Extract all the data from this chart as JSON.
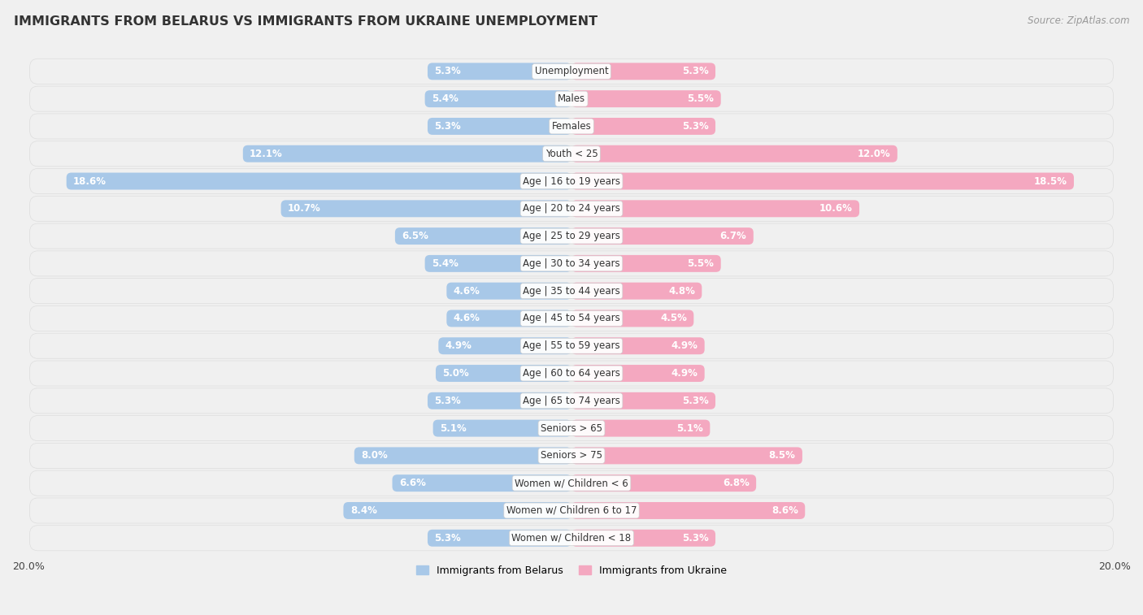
{
  "title": "IMMIGRANTS FROM BELARUS VS IMMIGRANTS FROM UKRAINE UNEMPLOYMENT",
  "source": "Source: ZipAtlas.com",
  "categories": [
    "Unemployment",
    "Males",
    "Females",
    "Youth < 25",
    "Age | 16 to 19 years",
    "Age | 20 to 24 years",
    "Age | 25 to 29 years",
    "Age | 30 to 34 years",
    "Age | 35 to 44 years",
    "Age | 45 to 54 years",
    "Age | 55 to 59 years",
    "Age | 60 to 64 years",
    "Age | 65 to 74 years",
    "Seniors > 65",
    "Seniors > 75",
    "Women w/ Children < 6",
    "Women w/ Children 6 to 17",
    "Women w/ Children < 18"
  ],
  "belarus_values": [
    5.3,
    5.4,
    5.3,
    12.1,
    18.6,
    10.7,
    6.5,
    5.4,
    4.6,
    4.6,
    4.9,
    5.0,
    5.3,
    5.1,
    8.0,
    6.6,
    8.4,
    5.3
  ],
  "ukraine_values": [
    5.3,
    5.5,
    5.3,
    12.0,
    18.5,
    10.6,
    6.7,
    5.5,
    4.8,
    4.5,
    4.9,
    4.9,
    5.3,
    5.1,
    8.5,
    6.8,
    8.6,
    5.3
  ],
  "belarus_color": "#a8c8e8",
  "ukraine_color": "#f4a8c0",
  "belarus_label": "Immigrants from Belarus",
  "ukraine_label": "Immigrants from Ukraine",
  "max_val": 20.0,
  "row_bg_color": "#e8e8e8",
  "bar_bg_color": "#f5f5f5",
  "figure_bg": "#f0f0f0",
  "title_fontsize": 11.5,
  "source_fontsize": 8.5,
  "cat_fontsize": 8.5,
  "value_fontsize": 8.5,
  "legend_fontsize": 9,
  "inside_threshold": 3.5
}
